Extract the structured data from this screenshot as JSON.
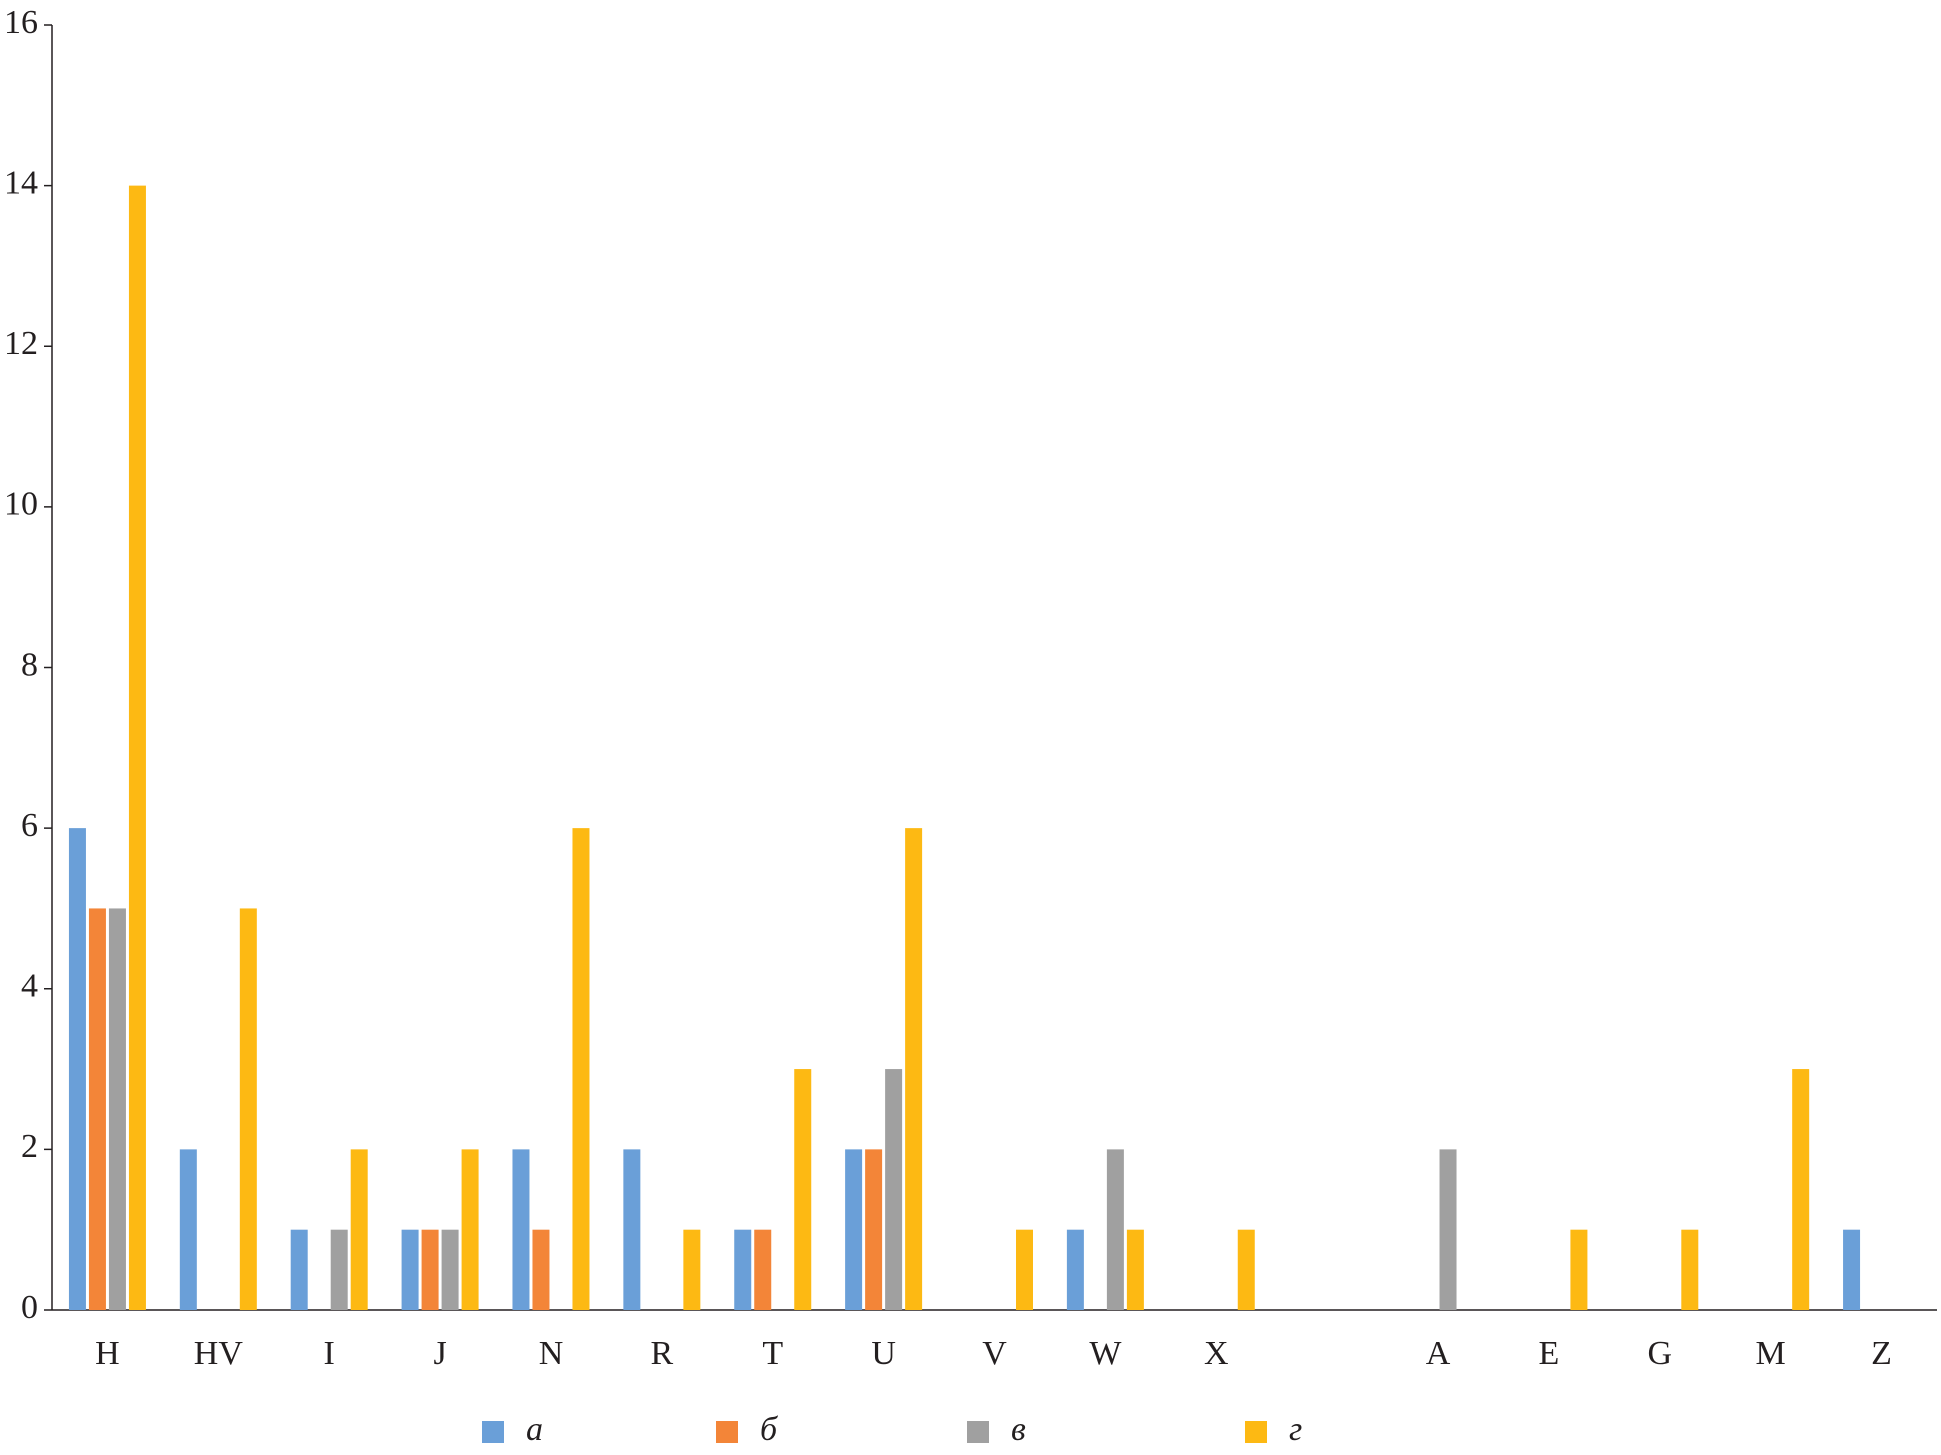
{
  "chart_data": {
    "type": "bar",
    "categories": [
      "H",
      "HV",
      "I",
      "J",
      "N",
      "R",
      "T",
      "U",
      "V",
      "W",
      "X",
      null,
      "A",
      "E",
      "G",
      "M",
      "Z"
    ],
    "series": [
      {
        "name": "а",
        "color": "#6a9fd8",
        "values": [
          6,
          2,
          1,
          1,
          2,
          2,
          1,
          2,
          0,
          1,
          0,
          null,
          0,
          0,
          0,
          0,
          1
        ]
      },
      {
        "name": "б",
        "color": "#f38538",
        "values": [
          5,
          0,
          0,
          1,
          1,
          0,
          1,
          2,
          0,
          0,
          0,
          null,
          0,
          0,
          0,
          0,
          0
        ]
      },
      {
        "name": "в",
        "color": "#a0a0a0",
        "values": [
          5,
          0,
          1,
          1,
          0,
          0,
          0,
          3,
          0,
          2,
          0,
          null,
          2,
          0,
          0,
          0,
          0
        ]
      },
      {
        "name": "г",
        "color": "#fdb913",
        "values": [
          14,
          5,
          2,
          2,
          6,
          1,
          3,
          6,
          1,
          1,
          1,
          null,
          0,
          1,
          1,
          3,
          0
        ]
      }
    ],
    "ylim": [
      0,
      16
    ],
    "yticks": [
      0,
      2,
      4,
      6,
      8,
      10,
      12,
      14,
      16
    ],
    "legend": "bottom"
  }
}
